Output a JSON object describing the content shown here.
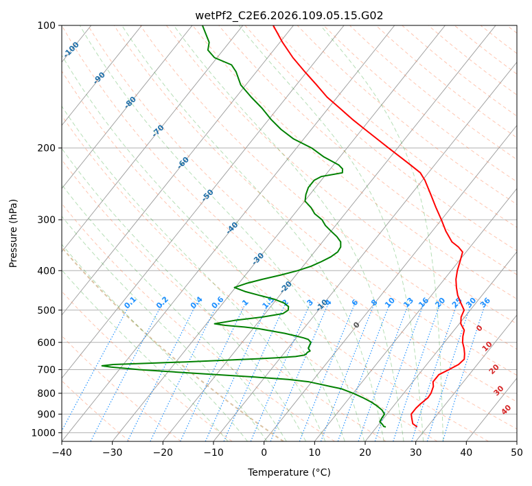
{
  "chart_data": {
    "type": "line",
    "chart_kind": "skew-t log-p",
    "title": "wetPf2_C2E6.2026.109.05.15.G02",
    "xlabel": "Temperature (°C)",
    "ylabel": "Pressure (hPa)",
    "xlim": [
      -40,
      50
    ],
    "ylim": [
      1050,
      100
    ],
    "y_scale": "log",
    "x_ticks": [
      "−40",
      "−30",
      "−20",
      "−10",
      "0",
      "10",
      "20",
      "30",
      "40",
      "50"
    ],
    "y_ticks": [
      "100",
      "200",
      "300",
      "400",
      "500",
      "600",
      "700",
      "800",
      "900",
      "1000"
    ],
    "x_tick_values": [
      -40,
      -30,
      -20,
      -10,
      0,
      10,
      20,
      30,
      40,
      50
    ],
    "y_tick_values": [
      100,
      200,
      300,
      400,
      500,
      600,
      700,
      800,
      900,
      1000
    ],
    "grid": true,
    "colors": {
      "temperature": "#ff0000",
      "dewpoint": "#008000",
      "isotherm_label": "#1f6fa8",
      "mixing_ratio": "#1e90ff",
      "moist_adiabat_label": "#d62728",
      "dry_adiabat": "#ff7f50",
      "moist_adiabat": "#2ca02c",
      "skew_grid": "#999999"
    },
    "series": [
      {
        "key": "temperature",
        "pressure": [
          968,
          950,
          920,
          900,
          870,
          850,
          820,
          800,
          770,
          750,
          720,
          700,
          680,
          660,
          640,
          620,
          600,
          580,
          560,
          540,
          520,
          500,
          480,
          460,
          440,
          420,
          400,
          380,
          360,
          350,
          340,
          320,
          300,
          280,
          260,
          240,
          230,
          220,
          210,
          200,
          190,
          180,
          170,
          160,
          150,
          140,
          130,
          120,
          110,
          100
        ],
        "values": [
          28.0,
          26.6,
          25.5,
          24.8,
          24.8,
          25.0,
          25.5,
          25.4,
          24.8,
          24.0,
          24.0,
          25.2,
          26.3,
          26.6,
          25.8,
          24.8,
          23.6,
          22.7,
          22.0,
          20.3,
          19.3,
          18.8,
          17.0,
          15.2,
          13.7,
          12.3,
          11.2,
          10.3,
          9.3,
          7.7,
          5.6,
          2.7,
          0.0,
          -3.0,
          -6.1,
          -9.5,
          -11.6,
          -14.8,
          -18.2,
          -21.8,
          -25.5,
          -29.4,
          -33.5,
          -37.6,
          -42.0,
          -46.0,
          -50.4,
          -55.0,
          -59.5,
          -64.0
        ]
      },
      {
        "key": "dewpoint",
        "pressure": [
          968,
          965,
          955,
          940,
          920,
          900,
          880,
          860,
          840,
          820,
          800,
          790,
          780,
          770,
          760,
          750,
          740,
          730,
          720,
          710,
          700,
          690,
          685,
          680,
          675,
          670,
          665,
          660,
          655,
          650,
          645,
          640,
          635,
          630,
          620,
          600,
          590,
          585,
          580,
          570,
          560,
          555,
          550,
          545,
          540,
          530,
          520,
          510,
          500,
          490,
          480,
          470,
          460,
          450,
          440,
          430,
          420,
          410,
          400,
          390,
          380,
          370,
          360,
          350,
          340,
          330,
          320,
          310,
          300,
          290,
          280,
          270,
          260,
          250,
          240,
          235,
          230,
          225,
          220,
          210,
          200,
          190,
          180,
          170,
          160,
          150,
          140,
          130,
          125,
          120,
          115,
          110,
          100
        ],
        "values": [
          21.8,
          21.3,
          20.8,
          19.8,
          19.6,
          19.5,
          18.4,
          16.8,
          14.9,
          12.6,
          10.0,
          8.5,
          7.0,
          4.5,
          2.0,
          -0.5,
          -5.0,
          -12.0,
          -20.0,
          -28.0,
          -36.0,
          -42.0,
          -44.0,
          -42.0,
          -35.0,
          -28.0,
          -22.0,
          -16.0,
          -11.0,
          -7.2,
          -5.7,
          -5.5,
          -5.5,
          -5.2,
          -6.0,
          -6.4,
          -7.4,
          -8.5,
          -10.0,
          -13.0,
          -17.0,
          -19.0,
          -22.0,
          -26.0,
          -28.4,
          -25.0,
          -20.0,
          -16.5,
          -16.0,
          -16.5,
          -18.0,
          -20.5,
          -24.0,
          -27.5,
          -30.2,
          -28.5,
          -26.0,
          -23.0,
          -20.4,
          -18.4,
          -17.1,
          -16.0,
          -15.4,
          -15.6,
          -16.4,
          -18.0,
          -20.0,
          -22.0,
          -23.6,
          -26.0,
          -27.7,
          -29.9,
          -30.8,
          -31.4,
          -31.4,
          -30.6,
          -27.0,
          -27.6,
          -29.0,
          -33.3,
          -37.0,
          -42.0,
          -46.0,
          -49.6,
          -53.0,
          -57.0,
          -61.0,
          -64.0,
          -66.0,
          -70.5,
          -73.0,
          -74.0,
          -78.0
        ]
      }
    ],
    "isotherm_labels": [
      "-100",
      "-90",
      "-80",
      "-70",
      "-60",
      "-50",
      "-40",
      "-30",
      "-20",
      "-10",
      "0"
    ],
    "mixing_ratio_labels": [
      "0.1",
      "0.2",
      "0.4",
      "0.6",
      "1",
      "1.5",
      "2",
      "3",
      "4",
      "6",
      "8",
      "10",
      "13",
      "16",
      "20",
      "25",
      "30",
      "36"
    ],
    "moist_adiabat_labels": [
      "0",
      "10",
      "20",
      "30",
      "40"
    ]
  }
}
